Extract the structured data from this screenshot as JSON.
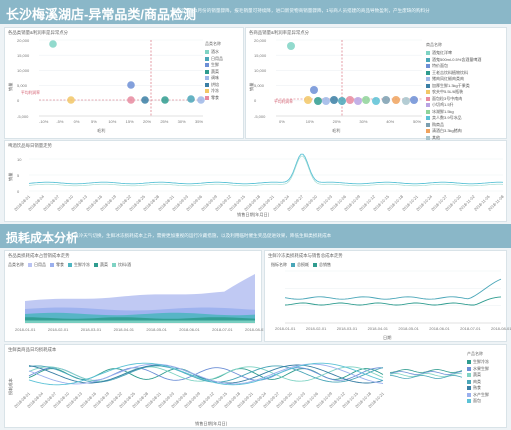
{
  "banner_top": {
    "title": "长沙梅溪湖店-异常品类/商品检测",
    "description": "嘴壳饮品业1月份的销量骤降，报毛销量可持续降，进口新货物商销量骤降，1号商人员搭建的商品导致盈利，产生废缺的购料分"
  },
  "scatter1": {
    "title": "各品类销量&利润率是异常点分",
    "ylabel": "销量",
    "xlabel": "毛利",
    "yticks": [
      "20,000",
      "15,000",
      "10,000",
      "5,000",
      "0",
      "-5,000"
    ],
    "xticks": [
      "-10%",
      "-5%",
      "0%",
      "5%",
      "10%",
      "15%",
      "20%",
      "25%",
      "30%",
      "35%"
    ],
    "ref_label": "平均利润率",
    "legend_title": "品类名称",
    "legend": [
      {
        "name": "酒水",
        "color": "#7fd3c4"
      },
      {
        "name": "日用品",
        "color": "#4aa6b8"
      },
      {
        "name": "生鲜",
        "color": "#6d8fd6"
      },
      {
        "name": "蔬菜",
        "color": "#2f9c8f"
      },
      {
        "name": "调味",
        "color": "#9eb7e8"
      },
      {
        "name": "烘焙",
        "color": "#3a7fa5"
      },
      {
        "name": "冷冻",
        "color": "#f2c766"
      },
      {
        "name": "零食",
        "color": "#e88ba0"
      }
    ]
  },
  "scatter2": {
    "title": "各商品销量&利润率是异常点分",
    "ylabel": "销量",
    "xlabel": "毛利",
    "yticks": [
      "20,000",
      "15,000",
      "10,000",
      "5,000",
      "0",
      "-5,000"
    ],
    "xticks": [
      "0%",
      "10%",
      "20%",
      "30%",
      "40%",
      "50%"
    ],
    "ref_label": "平均利润率",
    "legend_title": "商品名称",
    "legend": [
      {
        "name": "酒鬼红洋啤",
        "color": "#7fd3c4"
      },
      {
        "name": "酒鬼500ml-0.5%含酒量啤酒",
        "color": "#4aa6b8"
      },
      {
        "name": "特价面包",
        "color": "#6d8fd6"
      },
      {
        "name": "王老吉饮料植物饮料",
        "color": "#2f9c8f"
      },
      {
        "name": "猪肉凤红椒肉类肉",
        "color": "#9eb7e8"
      },
      {
        "name": "加厚生鲜1.3kg干果类",
        "color": "#3a7fa5"
      },
      {
        "name": "农夫中5.5L/6瓶装",
        "color": "#f2c766"
      },
      {
        "name": "面包粒3号中南肉",
        "color": "#e88ba0"
      },
      {
        "name": "小切鸡1.5升",
        "color": "#b9a3e3"
      },
      {
        "name": "冰湖鲜1.5kg",
        "color": "#8fd39a"
      },
      {
        "name": "卖人数3.9号冰品",
        "color": "#5cc2d6"
      },
      {
        "name": "购商品",
        "color": "#7b9fb0"
      },
      {
        "name": "清酒白3.3kg猪肉",
        "color": "#f0a35e"
      },
      {
        "name": "其他",
        "color": "#a7c4cc"
      }
    ]
  },
  "trend1": {
    "title": "啤酒饮品每日销量走势",
    "ylabel": "销量",
    "xlabel": "销售日期(年月日)",
    "xticks": [
      "2018-08-01",
      "2018-08-04",
      "2018-08-07",
      "2018-08-10",
      "2018-08-13",
      "2018-08-16",
      "2018-08-19",
      "2018-08-22",
      "2018-08-25",
      "2018-08-28",
      "2018-08-31",
      "2018-09-03",
      "2018-09-06",
      "2018-09-09",
      "2018-09-12",
      "2018-09-15",
      "2018-09-18",
      "2018-09-21",
      "2018-09-24",
      "2018-09-27",
      "2018-09-30",
      "2018-10-03",
      "2018-10-06",
      "2018-10-09",
      "2018-10-12",
      "2018-10-15",
      "2018-10-18",
      "2018-10-21",
      "2018-10-24",
      "2018-10-27",
      "2018-10-30",
      "2018-11-02",
      "2018-11-05",
      "2018-11-08"
    ],
    "yticks": [
      "10",
      "5",
      "0"
    ]
  },
  "banner_mid": {
    "title": "损耗成本分析",
    "description": "逢冷天气切换，生鲜冰冻损耗成本上升，需要更加重视的运行冷藏措施，以及利用临时催生奖品促进效果，降低生鲜类损耗成本"
  },
  "area": {
    "title": "各品类损耗成本占营销成本走势",
    "legend_title": "品类名称",
    "legend": [
      {
        "name": "日用品",
        "color": "#b9c3f2"
      },
      {
        "name": "零食",
        "color": "#9bb0ee"
      },
      {
        "name": "生鲜冷冻",
        "color": "#4fb5c1"
      },
      {
        "name": "蔬菜",
        "color": "#2f9c8f"
      },
      {
        "name": "饮料/酒",
        "color": "#7fd3c4"
      }
    ],
    "xticks": [
      "2018-01-01",
      "2018-02-01",
      "2018-03-01",
      "2018-04-01",
      "2018-05-01",
      "2018-06-01",
      "2018-07-01",
      "2018-08-01"
    ]
  },
  "lines2": {
    "title": "生鲜冷冻类损耗成本与销售总成本走势",
    "legend_title": "指标名称",
    "legend": [
      {
        "name": "总损耗",
        "color": "#4aa6b8"
      },
      {
        "name": "总销售",
        "color": "#2f9c8f"
      }
    ],
    "xticks": [
      "2018-01-01",
      "2018-02-01",
      "2018-03-01",
      "2018-04-01",
      "2018-05-01",
      "2018-06-01",
      "2018-07-01",
      "2018-08-01"
    ],
    "xlabel": "日期"
  },
  "trend2": {
    "title": "生鲜类商品日均损耗成本",
    "ylabel": "损耗成本",
    "xlabel": "销售日期(年月日)",
    "legend_title": "产品名称",
    "legend": [
      {
        "name": "生鲜冷冻",
        "color": "#2f9c8f"
      },
      {
        "name": "水果生鲜",
        "color": "#6d8fd6"
      },
      {
        "name": "蔬菜",
        "color": "#7fd3c4"
      },
      {
        "name": "肉类",
        "color": "#4aa6b8"
      },
      {
        "name": "熟食",
        "color": "#3a7fa5"
      },
      {
        "name": "水产生鲜",
        "color": "#9bb0ee"
      },
      {
        "name": "面包",
        "color": "#5cc2d6"
      }
    ]
  }
}
